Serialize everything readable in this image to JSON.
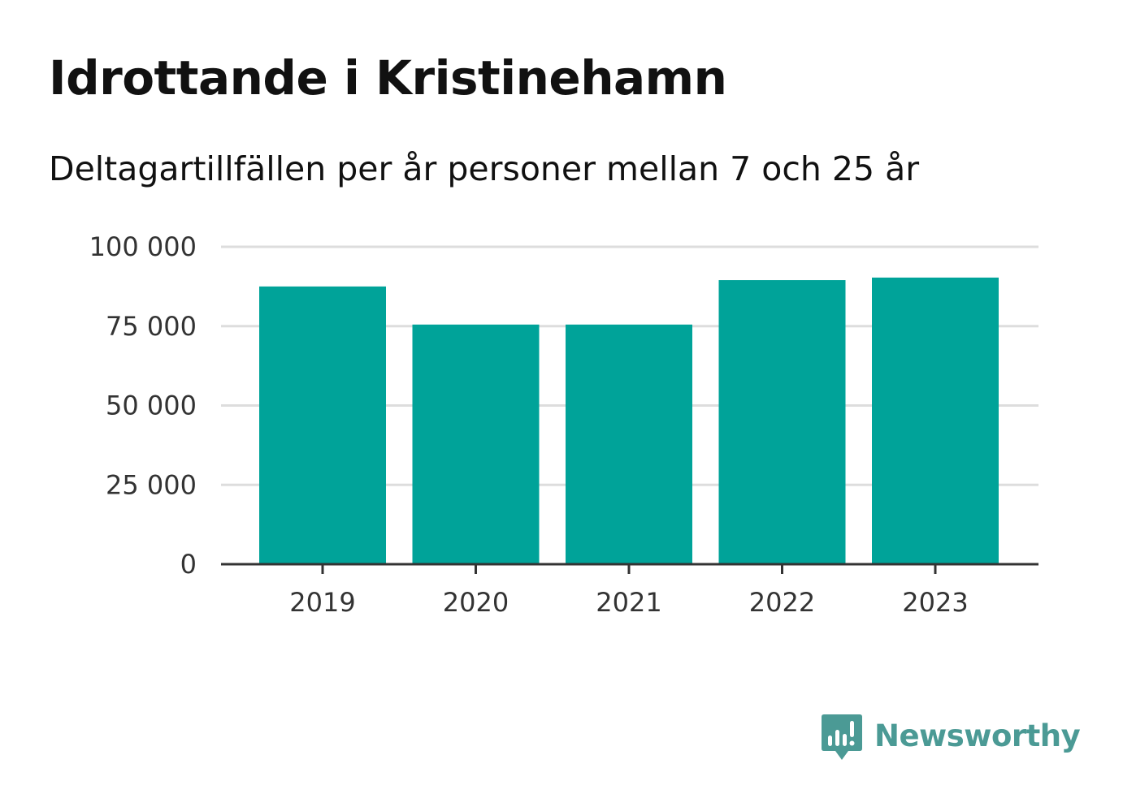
{
  "title": "Idrottande i Kristinehamn",
  "subtitle": "Deltagartillfällen per år personer mellan 7 och 25 år",
  "brand": {
    "name": "Newsworthy",
    "color": "#4b9a95",
    "icon": "bar-chart-speech-bubble-icon"
  },
  "colors": {
    "bar": "#00a399",
    "grid": "#dddddd",
    "axis": "#333333"
  },
  "chart_data": {
    "type": "bar",
    "categories": [
      "2019",
      "2020",
      "2021",
      "2022",
      "2023"
    ],
    "values": [
      87500,
      75500,
      75500,
      89500,
      90300
    ],
    "ylim": [
      0,
      100000
    ],
    "yticks": [
      0,
      25000,
      50000,
      75000,
      100000
    ],
    "ytick_labels": [
      "0",
      "25 000",
      "50 000",
      "75 000",
      "100 000"
    ],
    "xlabel": "",
    "ylabel": "",
    "grid": true,
    "legend": "none"
  }
}
